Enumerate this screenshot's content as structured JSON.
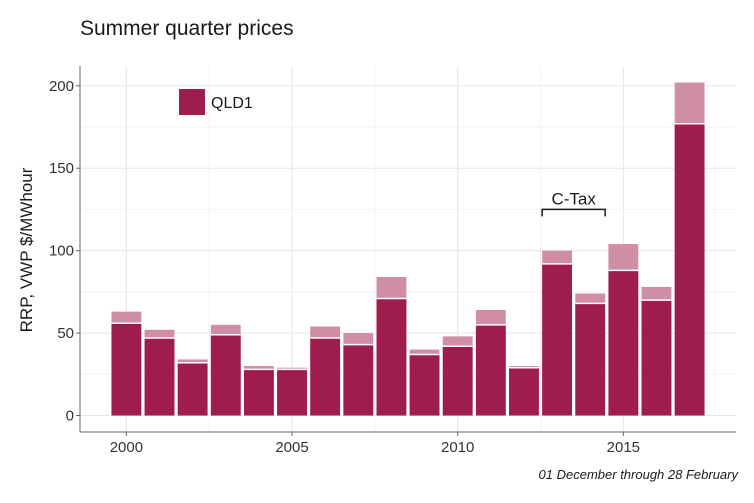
{
  "chart_data": {
    "type": "bar",
    "title": "Summer quarter prices",
    "ylabel": "RRP, VWP $/MWhour",
    "xlabel": "",
    "caption": "01 December through 28 February",
    "ylim": [
      -10,
      212
    ],
    "xlim": [
      1998.6,
      2018.4
    ],
    "yticks": [
      0,
      50,
      100,
      150,
      200
    ],
    "xticks": [
      2000,
      2005,
      2010,
      2015
    ],
    "grid": true,
    "legend": {
      "position": "top-left",
      "entries": [
        "QLD1"
      ]
    },
    "colors": {
      "rrp": "#9e1c4e",
      "vwp": "#d08da6",
      "separator": "#ffffff"
    },
    "series": [
      {
        "name": "QLD1",
        "x": [
          2000,
          2001,
          2002,
          2003,
          2004,
          2005,
          2006,
          2007,
          2008,
          2009,
          2010,
          2011,
          2012,
          2013,
          2014,
          2015,
          2016,
          2017
        ],
        "rrp": [
          56,
          47,
          32,
          49,
          28,
          28,
          47,
          43,
          71,
          37,
          42,
          55,
          29,
          92,
          68,
          88,
          70,
          177
        ],
        "vwp": [
          63,
          52,
          34,
          55,
          30,
          29,
          54,
          50,
          84,
          40,
          48,
          64,
          30,
          100,
          74,
          104,
          78,
          202
        ]
      }
    ],
    "annotations": [
      {
        "text": "C-Tax",
        "x_start": 2012.55,
        "x_end": 2014.45,
        "y": 125
      }
    ]
  }
}
